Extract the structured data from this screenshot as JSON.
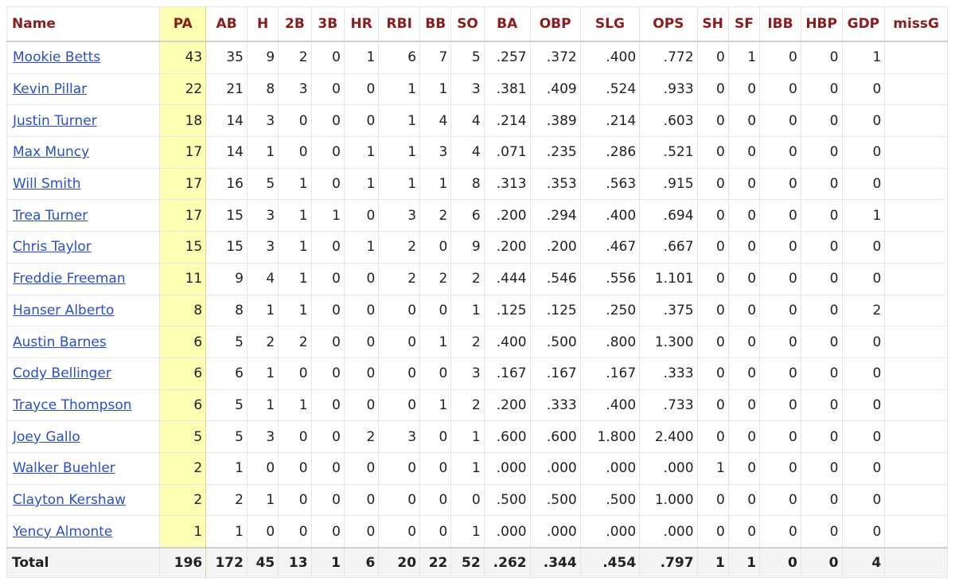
{
  "table": {
    "columns": [
      "Name",
      "PA",
      "AB",
      "H",
      "2B",
      "3B",
      "HR",
      "RBI",
      "BB",
      "SO",
      "BA",
      "OBP",
      "SLG",
      "OPS",
      "SH",
      "SF",
      "IBB",
      "HBP",
      "GDP",
      "missG"
    ],
    "rows": [
      {
        "name": "Mookie Betts",
        "stats": [
          "43",
          "35",
          "9",
          "2",
          "0",
          "1",
          "6",
          "7",
          "5",
          ".257",
          ".372",
          ".400",
          ".772",
          "0",
          "1",
          "0",
          "0",
          "1",
          ""
        ]
      },
      {
        "name": "Kevin Pillar",
        "stats": [
          "22",
          "21",
          "8",
          "3",
          "0",
          "0",
          "1",
          "1",
          "3",
          ".381",
          ".409",
          ".524",
          ".933",
          "0",
          "0",
          "0",
          "0",
          "0",
          ""
        ]
      },
      {
        "name": "Justin Turner",
        "stats": [
          "18",
          "14",
          "3",
          "0",
          "0",
          "0",
          "1",
          "4",
          "4",
          ".214",
          ".389",
          ".214",
          ".603",
          "0",
          "0",
          "0",
          "0",
          "0",
          ""
        ]
      },
      {
        "name": "Max Muncy",
        "stats": [
          "17",
          "14",
          "1",
          "0",
          "0",
          "1",
          "1",
          "3",
          "4",
          ".071",
          ".235",
          ".286",
          ".521",
          "0",
          "0",
          "0",
          "0",
          "0",
          ""
        ]
      },
      {
        "name": "Will Smith",
        "stats": [
          "17",
          "16",
          "5",
          "1",
          "0",
          "1",
          "1",
          "1",
          "8",
          ".313",
          ".353",
          ".563",
          ".915",
          "0",
          "0",
          "0",
          "0",
          "0",
          ""
        ]
      },
      {
        "name": "Trea Turner",
        "stats": [
          "17",
          "15",
          "3",
          "1",
          "1",
          "0",
          "3",
          "2",
          "6",
          ".200",
          ".294",
          ".400",
          ".694",
          "0",
          "0",
          "0",
          "0",
          "1",
          ""
        ]
      },
      {
        "name": "Chris Taylor",
        "stats": [
          "15",
          "15",
          "3",
          "1",
          "0",
          "1",
          "2",
          "0",
          "9",
          ".200",
          ".200",
          ".467",
          ".667",
          "0",
          "0",
          "0",
          "0",
          "0",
          ""
        ]
      },
      {
        "name": "Freddie Freeman",
        "stats": [
          "11",
          "9",
          "4",
          "1",
          "0",
          "0",
          "2",
          "2",
          "2",
          ".444",
          ".546",
          ".556",
          "1.101",
          "0",
          "0",
          "0",
          "0",
          "0",
          ""
        ]
      },
      {
        "name": "Hanser Alberto",
        "stats": [
          "8",
          "8",
          "1",
          "1",
          "0",
          "0",
          "0",
          "0",
          "1",
          ".125",
          ".125",
          ".250",
          ".375",
          "0",
          "0",
          "0",
          "0",
          "2",
          ""
        ]
      },
      {
        "name": "Austin Barnes",
        "stats": [
          "6",
          "5",
          "2",
          "2",
          "0",
          "0",
          "0",
          "1",
          "2",
          ".400",
          ".500",
          ".800",
          "1.300",
          "0",
          "0",
          "0",
          "0",
          "0",
          ""
        ]
      },
      {
        "name": "Cody Bellinger",
        "stats": [
          "6",
          "6",
          "1",
          "0",
          "0",
          "0",
          "0",
          "0",
          "3",
          ".167",
          ".167",
          ".167",
          ".333",
          "0",
          "0",
          "0",
          "0",
          "0",
          ""
        ]
      },
      {
        "name": "Trayce Thompson",
        "stats": [
          "6",
          "5",
          "1",
          "1",
          "0",
          "0",
          "0",
          "1",
          "2",
          ".200",
          ".333",
          ".400",
          ".733",
          "0",
          "0",
          "0",
          "0",
          "0",
          ""
        ]
      },
      {
        "name": "Joey Gallo",
        "stats": [
          "5",
          "5",
          "3",
          "0",
          "0",
          "2",
          "3",
          "0",
          "1",
          ".600",
          ".600",
          "1.800",
          "2.400",
          "0",
          "0",
          "0",
          "0",
          "0",
          ""
        ]
      },
      {
        "name": "Walker Buehler",
        "stats": [
          "2",
          "1",
          "0",
          "0",
          "0",
          "0",
          "0",
          "0",
          "1",
          ".000",
          ".000",
          ".000",
          ".000",
          "1",
          "0",
          "0",
          "0",
          "0",
          ""
        ]
      },
      {
        "name": "Clayton Kershaw",
        "stats": [
          "2",
          "2",
          "1",
          "0",
          "0",
          "0",
          "0",
          "0",
          "0",
          ".500",
          ".500",
          ".500",
          "1.000",
          "0",
          "0",
          "0",
          "0",
          "0",
          ""
        ]
      },
      {
        "name": "Yency Almonte",
        "stats": [
          "1",
          "1",
          "0",
          "0",
          "0",
          "0",
          "0",
          "0",
          "1",
          ".000",
          ".000",
          ".000",
          ".000",
          "0",
          "0",
          "0",
          "0",
          "0",
          ""
        ]
      }
    ],
    "total": {
      "label": "Total",
      "stats": [
        "196",
        "172",
        "45",
        "13",
        "1",
        "6",
        "20",
        "22",
        "52",
        ".262",
        ".344",
        ".454",
        ".797",
        "1",
        "1",
        "0",
        "0",
        "4",
        ""
      ]
    }
  },
  "colors": {
    "header_text": "#8b1c1c",
    "link": "#2a4fc9",
    "pa_highlight": "#ffffb3"
  }
}
